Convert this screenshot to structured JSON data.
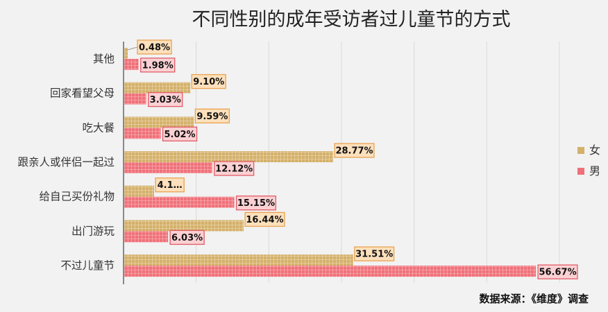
{
  "chart_data": {
    "type": "bar",
    "orientation": "horizontal",
    "title": "不同性别的成年受访者过儿童节的方式",
    "categories": [
      "其他",
      "回家看望父母",
      "吃大餐",
      "跟亲人或伴侣一起过",
      "给自己买份礼物",
      "出门游玩",
      "不过儿童节"
    ],
    "series": [
      {
        "name": "女",
        "color": "#d4b06a",
        "values": [
          0.48,
          9.1,
          9.59,
          28.77,
          4.11,
          16.44,
          31.51
        ],
        "labels": [
          "0.48%",
          "9.10%",
          "9.59%",
          "28.77%",
          "4.1…",
          "16.44%",
          "31.51%"
        ]
      },
      {
        "name": "男",
        "color": "#f07079",
        "values": [
          1.98,
          3.03,
          5.02,
          12.12,
          15.15,
          6.03,
          56.67
        ],
        "labels": [
          "1.98%",
          "3.03%",
          "5.02%",
          "12.12%",
          "15.15%",
          "6.03%",
          "56.67%"
        ]
      }
    ],
    "xlim": [
      0,
      60
    ],
    "grid": true,
    "legend_position": "right",
    "xlabel": "",
    "ylabel": ""
  },
  "source_note": "数据来源：《维度》调查"
}
